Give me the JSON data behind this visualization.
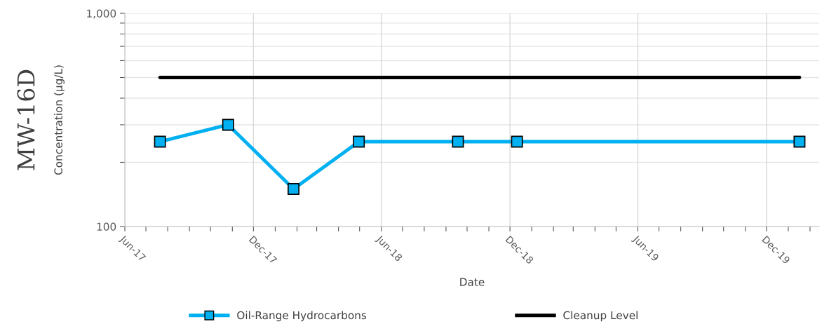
{
  "chart_data": {
    "type": "line",
    "title": "MW-16D",
    "xlabel": "Date",
    "ylabel": "Concentration (µg/L)",
    "log": "y",
    "ylim": [
      100,
      1000
    ],
    "yticks": [
      {
        "value": 100,
        "label": "100"
      },
      {
        "value": 200,
        "label": null
      },
      {
        "value": 300,
        "label": null
      },
      {
        "value": 400,
        "label": null
      },
      {
        "value": 500,
        "label": null
      },
      {
        "value": 600,
        "label": null
      },
      {
        "value": 700,
        "label": null
      },
      {
        "value": 800,
        "label": null
      },
      {
        "value": 900,
        "label": null
      },
      {
        "value": 1000,
        "label": "1,000"
      }
    ],
    "xlim": [
      "2017-06-01",
      "2020-02-14"
    ],
    "xticks": [
      {
        "value": "2017-06-01",
        "label": "Jun-17"
      },
      {
        "value": "2017-07-01",
        "label": null
      },
      {
        "value": "2017-08-01",
        "label": null
      },
      {
        "value": "2017-09-01",
        "label": null
      },
      {
        "value": "2017-10-01",
        "label": null
      },
      {
        "value": "2017-11-01",
        "label": null
      },
      {
        "value": "2017-12-01",
        "label": "Dec-17"
      },
      {
        "value": "2018-01-01",
        "label": null
      },
      {
        "value": "2018-02-01",
        "label": null
      },
      {
        "value": "2018-03-01",
        "label": null
      },
      {
        "value": "2018-04-01",
        "label": null
      },
      {
        "value": "2018-05-01",
        "label": null
      },
      {
        "value": "2018-06-01",
        "label": "Jun-18"
      },
      {
        "value": "2018-07-01",
        "label": null
      },
      {
        "value": "2018-08-01",
        "label": null
      },
      {
        "value": "2018-09-01",
        "label": null
      },
      {
        "value": "2018-10-01",
        "label": null
      },
      {
        "value": "2018-11-01",
        "label": null
      },
      {
        "value": "2018-12-01",
        "label": "Dec-18"
      },
      {
        "value": "2019-01-01",
        "label": null
      },
      {
        "value": "2019-02-01",
        "label": null
      },
      {
        "value": "2019-03-01",
        "label": null
      },
      {
        "value": "2019-04-01",
        "label": null
      },
      {
        "value": "2019-05-01",
        "label": null
      },
      {
        "value": "2019-06-01",
        "label": "Jun-19"
      },
      {
        "value": "2019-07-01",
        "label": null
      },
      {
        "value": "2019-08-01",
        "label": null
      },
      {
        "value": "2019-09-01",
        "label": null
      },
      {
        "value": "2019-10-01",
        "label": null
      },
      {
        "value": "2019-11-01",
        "label": null
      },
      {
        "value": "2019-12-01",
        "label": "Dec-19"
      },
      {
        "value": "2020-01-01",
        "label": null
      },
      {
        "value": "2020-02-01",
        "label": null
      }
    ],
    "grid": true,
    "legend": "bottom",
    "series": [
      {
        "name": "Oil-Range Hydrocarbons",
        "color": "#00b0f0",
        "marker": "square",
        "x": [
          "2017-07-21",
          "2017-10-26",
          "2018-01-27",
          "2018-04-30",
          "2018-09-18",
          "2018-12-11",
          "2020-01-17"
        ],
        "values": [
          250,
          300,
          150,
          250,
          250,
          250,
          250
        ]
      },
      {
        "name": "Cleanup Level",
        "color": "#000000",
        "marker": "none",
        "x": [
          "2017-07-21",
          "2020-01-17"
        ],
        "values": [
          500,
          500
        ]
      }
    ]
  }
}
